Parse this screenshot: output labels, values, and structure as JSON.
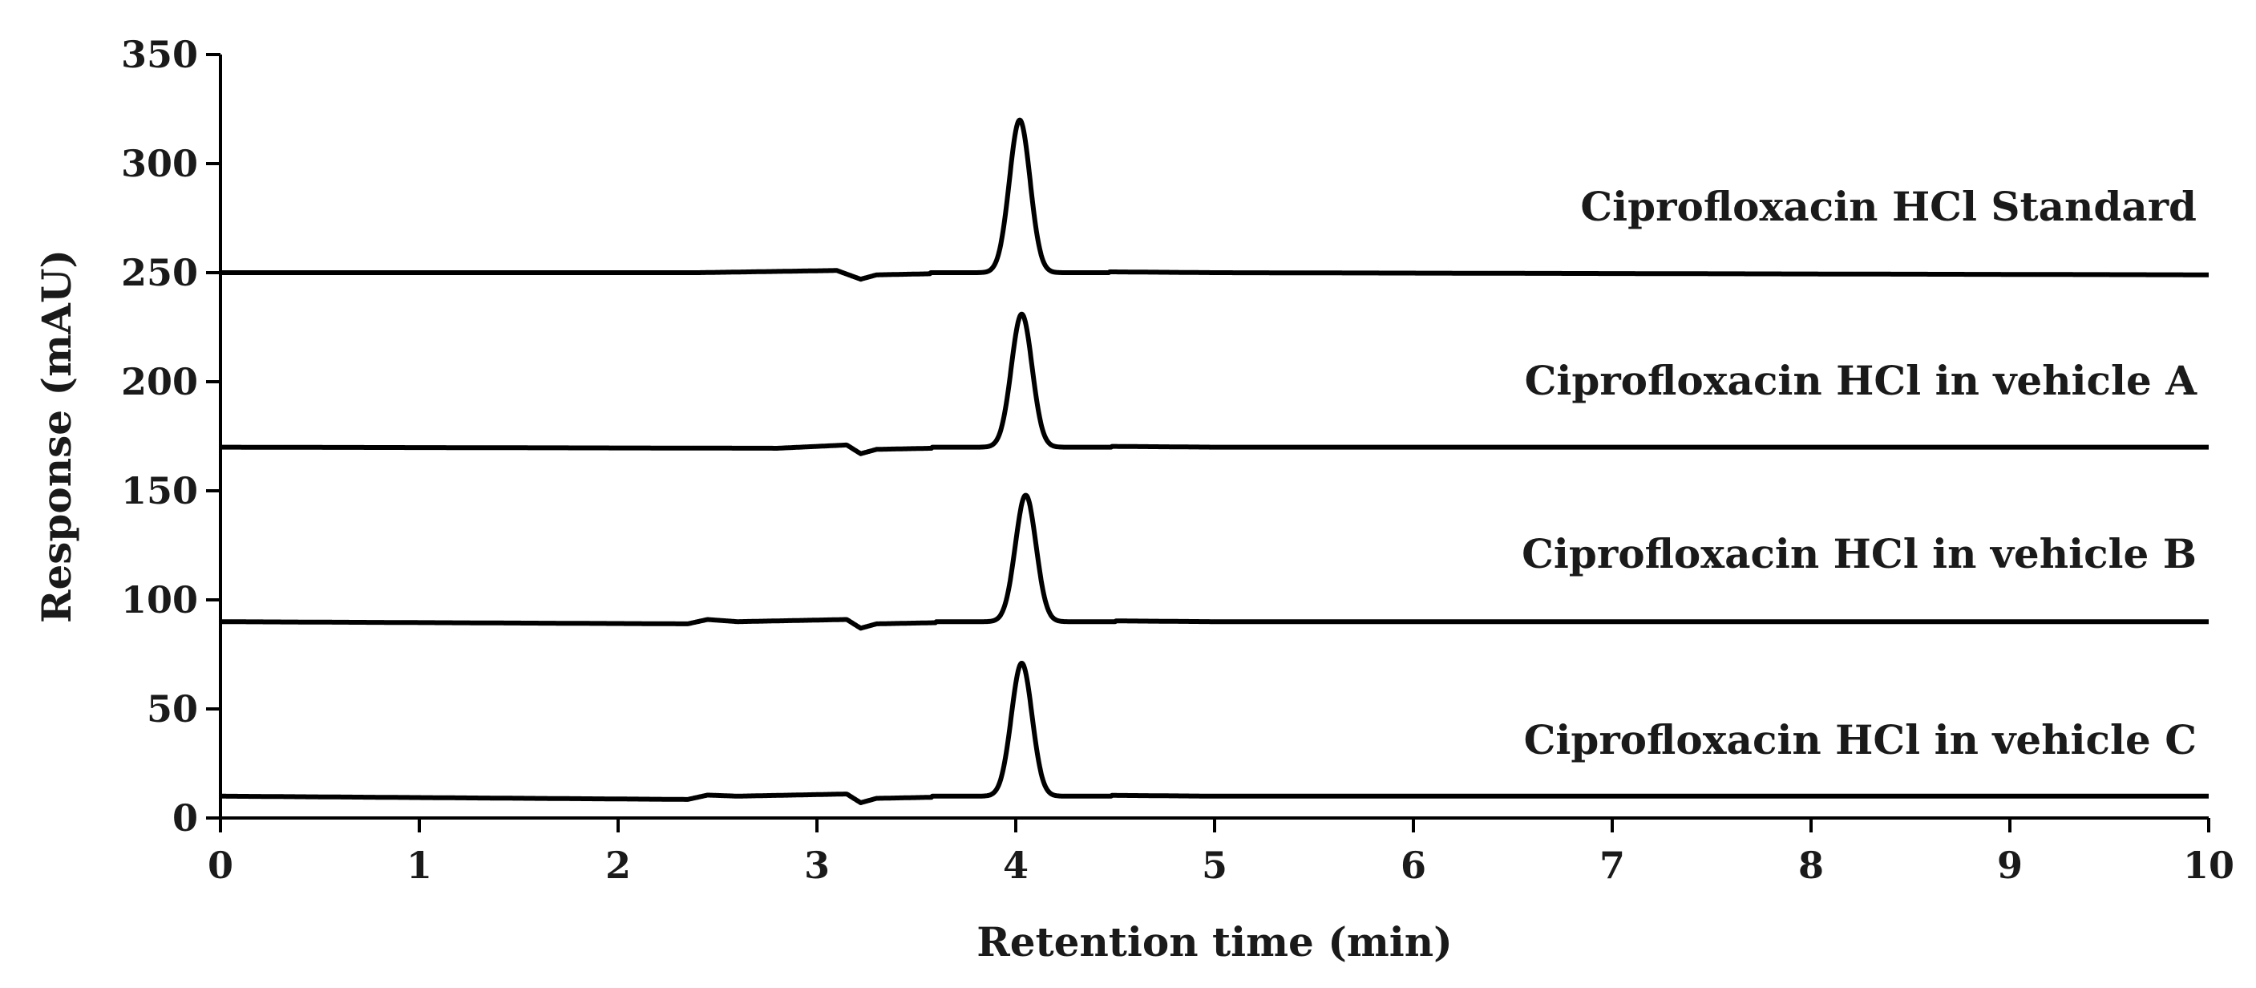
{
  "chart_data": {
    "type": "line",
    "title": "",
    "xlabel": "Retention time (min)",
    "ylabel": "Response (mAU)",
    "xlim": [
      0,
      10
    ],
    "ylim": [
      0,
      350
    ],
    "xticks": [
      0,
      1,
      2,
      3,
      4,
      5,
      6,
      7,
      8,
      9,
      10
    ],
    "yticks": [
      0,
      50,
      100,
      150,
      200,
      250,
      300,
      350
    ],
    "grid": false,
    "legend": "none",
    "series": [
      {
        "name": "Ciprofloxacin HCl Standard",
        "baseline": 250,
        "peak": {
          "x": 4.02,
          "y": 320
        },
        "points": [
          [
            0,
            250
          ],
          [
            2.4,
            250
          ],
          [
            3.1,
            251
          ],
          [
            3.22,
            247
          ],
          [
            3.3,
            249
          ],
          [
            3.85,
            250
          ],
          [
            4.02,
            320
          ],
          [
            4.3,
            250.5
          ],
          [
            5.0,
            250
          ],
          [
            10,
            249
          ]
        ]
      },
      {
        "name": "Ciprofloxacin HCl in vehicle A",
        "baseline": 170,
        "peak": {
          "x": 4.03,
          "y": 231
        },
        "points": [
          [
            0,
            170
          ],
          [
            2.8,
            169.5
          ],
          [
            3.15,
            171
          ],
          [
            3.22,
            167
          ],
          [
            3.3,
            169
          ],
          [
            3.85,
            170
          ],
          [
            4.03,
            231
          ],
          [
            4.3,
            170.5
          ],
          [
            5.0,
            170
          ],
          [
            10,
            170
          ]
        ]
      },
      {
        "name": "Ciprofloxacin HCl in vehicle B",
        "baseline": 90,
        "peak": {
          "x": 4.05,
          "y": 148
        },
        "points": [
          [
            0,
            90
          ],
          [
            2.35,
            89
          ],
          [
            2.45,
            91
          ],
          [
            2.6,
            90
          ],
          [
            3.15,
            91
          ],
          [
            3.22,
            87
          ],
          [
            3.3,
            89
          ],
          [
            3.85,
            90
          ],
          [
            4.05,
            148
          ],
          [
            4.3,
            90.5
          ],
          [
            5.0,
            90
          ],
          [
            10,
            90
          ]
        ]
      },
      {
        "name": "Ciprofloxacin HCl in vehicle C",
        "baseline": 10,
        "peak": {
          "x": 4.03,
          "y": 71
        },
        "points": [
          [
            0,
            10
          ],
          [
            2.35,
            8.5
          ],
          [
            2.45,
            10.5
          ],
          [
            2.6,
            10
          ],
          [
            3.15,
            11
          ],
          [
            3.22,
            7
          ],
          [
            3.3,
            9
          ],
          [
            3.85,
            10
          ],
          [
            4.03,
            71
          ],
          [
            4.3,
            10.5
          ],
          [
            5.0,
            10
          ],
          [
            10,
            10
          ]
        ]
      }
    ]
  }
}
